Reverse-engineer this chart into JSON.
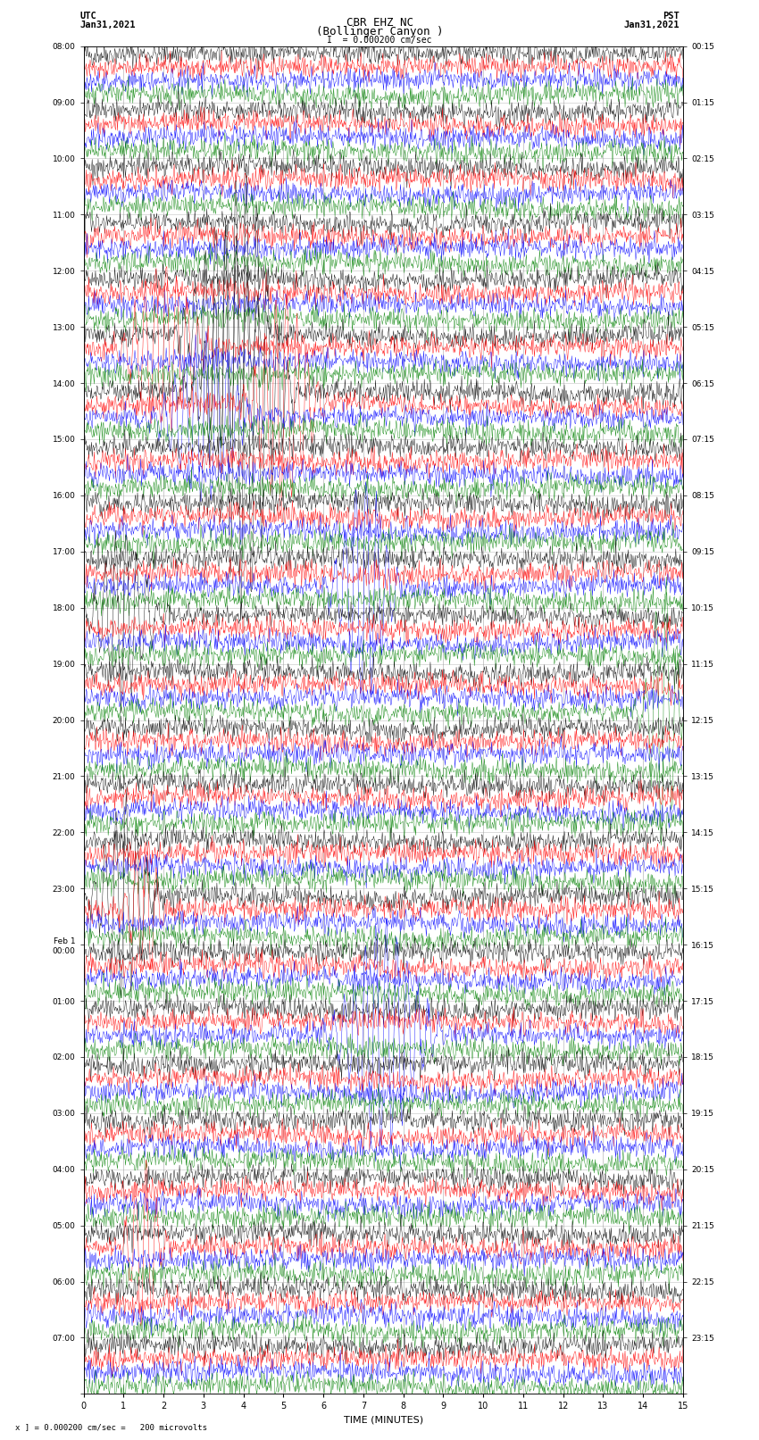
{
  "title_line1": "CBR EHZ NC",
  "title_line2": "(Bollinger Canyon )",
  "scale_label": "I  = 0.000200 cm/sec",
  "xlabel": "TIME (MINUTES)",
  "footnote": "x ] = 0.000200 cm/sec =   200 microvolts",
  "utc_labels_hourly": [
    "08:00",
    "09:00",
    "10:00",
    "11:00",
    "12:00",
    "13:00",
    "14:00",
    "15:00",
    "16:00",
    "17:00",
    "18:00",
    "19:00",
    "20:00",
    "21:00",
    "22:00",
    "23:00",
    "Feb 1\n00:00",
    "01:00",
    "02:00",
    "03:00",
    "04:00",
    "05:00",
    "06:00",
    "07:00"
  ],
  "pst_labels_hourly": [
    "00:15",
    "01:15",
    "02:15",
    "03:15",
    "04:15",
    "05:15",
    "06:15",
    "07:15",
    "08:15",
    "09:15",
    "10:15",
    "11:15",
    "12:15",
    "13:15",
    "14:15",
    "15:15",
    "16:15",
    "17:15",
    "18:15",
    "19:15",
    "20:15",
    "21:15",
    "22:15",
    "23:15"
  ],
  "colors": [
    "black",
    "red",
    "blue",
    "green"
  ],
  "bg_color": "#ffffff",
  "grid_color": "#999999",
  "n_hours": 24,
  "traces_per_hour": 4,
  "x_min": 0,
  "x_max": 15,
  "x_ticks": [
    0,
    1,
    2,
    3,
    4,
    5,
    6,
    7,
    8,
    9,
    10,
    11,
    12,
    13,
    14,
    15
  ],
  "noise_amplitude": 0.1,
  "seed": 42
}
